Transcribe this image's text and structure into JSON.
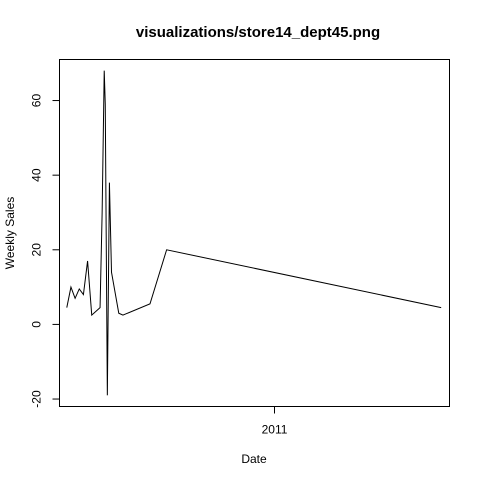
{
  "chart_data": {
    "type": "line",
    "title": "visualizations/store14_dept45.png",
    "xlabel": "Date",
    "ylabel": "Weekly Sales",
    "x_tick_labels": [
      "2011"
    ],
    "y_tick_labels": [
      "-20",
      "0",
      "20",
      "40",
      "60"
    ],
    "y_ticks": [
      -20,
      0,
      20,
      40,
      60
    ],
    "ylim": [
      -22,
      71
    ],
    "grid": false,
    "legend": "none",
    "line_color": "#000000",
    "series": [
      {
        "values": [
          [
            2010.15,
            4.5
          ],
          [
            2010.17,
            10
          ],
          [
            2010.19,
            7
          ],
          [
            2010.21,
            9.5
          ],
          [
            2010.23,
            8
          ],
          [
            2010.25,
            17
          ],
          [
            2010.27,
            2.5
          ],
          [
            2010.31,
            4.5
          ],
          [
            2010.32,
            30
          ],
          [
            2010.33,
            68
          ],
          [
            2010.335,
            59
          ],
          [
            2010.345,
            -19
          ],
          [
            2010.355,
            38
          ],
          [
            2010.365,
            14
          ],
          [
            2010.4,
            3
          ],
          [
            2010.42,
            2.5
          ],
          [
            2010.55,
            5.5
          ],
          [
            2010.63,
            20
          ],
          [
            2011.95,
            4.5
          ]
        ]
      }
    ]
  }
}
